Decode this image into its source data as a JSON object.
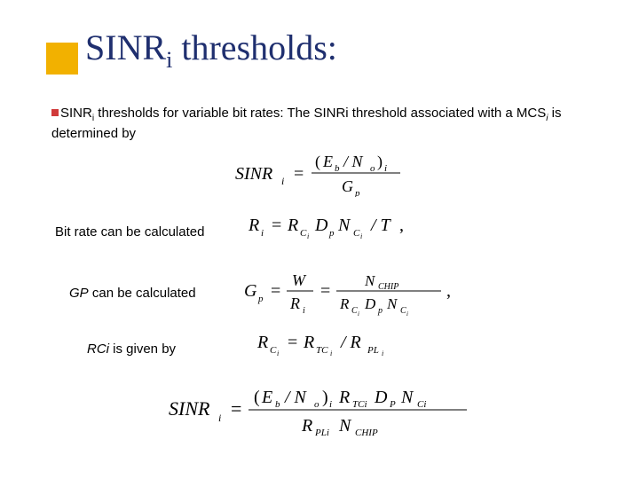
{
  "accent_color": "#f2b100",
  "title_color": "#1f2f6f",
  "bullet_color": "#d03a3a",
  "text_color": "#000000",
  "bg_color": "#ffffff",
  "title_html": "SINR<sub>i</sub> thresholds:",
  "bullet_prefix": "SINR",
  "bullet_sub": "i",
  "bullet_rest_1": " thresholds for variable bit rates: The SINRi threshold associated with a MCS",
  "bullet_sub2": "i",
  "bullet_rest_2": "  is determined by",
  "label_bitrate": "Bit rate can be calculated",
  "label_gp": "GP can be calculated",
  "label_gp_prefix_italic": "GP",
  "label_gp_rest": " can be calculated",
  "label_rci": "RCi is given by",
  "label_rci_prefix_italic": "RCi",
  "label_rci_rest": " is given by",
  "eq": {
    "sinr1": {
      "lhs": "SINR",
      "lhs_sub": "i",
      "num": "(E_b / N_o)_i",
      "den": "G_p"
    },
    "bitrate": {
      "lhs": "R",
      "lhs_sub": "i",
      "rhs": "R_{C_i} D_p N_{C_i} / T ,"
    },
    "gp": {
      "lhs": "G_p",
      "mid_num": "W",
      "mid_den": "R_i",
      "rhs_num": "N_{CHIP}",
      "rhs_den": "R_{C_i} D_p N_{C_i}",
      "tail": ","
    },
    "rci": {
      "lhs": "R_{C_i}",
      "rhs": "R_{TC_i} / R_{PL_i}"
    },
    "sinr2": {
      "lhs": "SINR",
      "lhs_sub": "i",
      "num": "(E_b / N_o)_i R_{TCi} D_p N_{Ci}",
      "den": "R_{PLi} N_{CHIP}"
    }
  }
}
